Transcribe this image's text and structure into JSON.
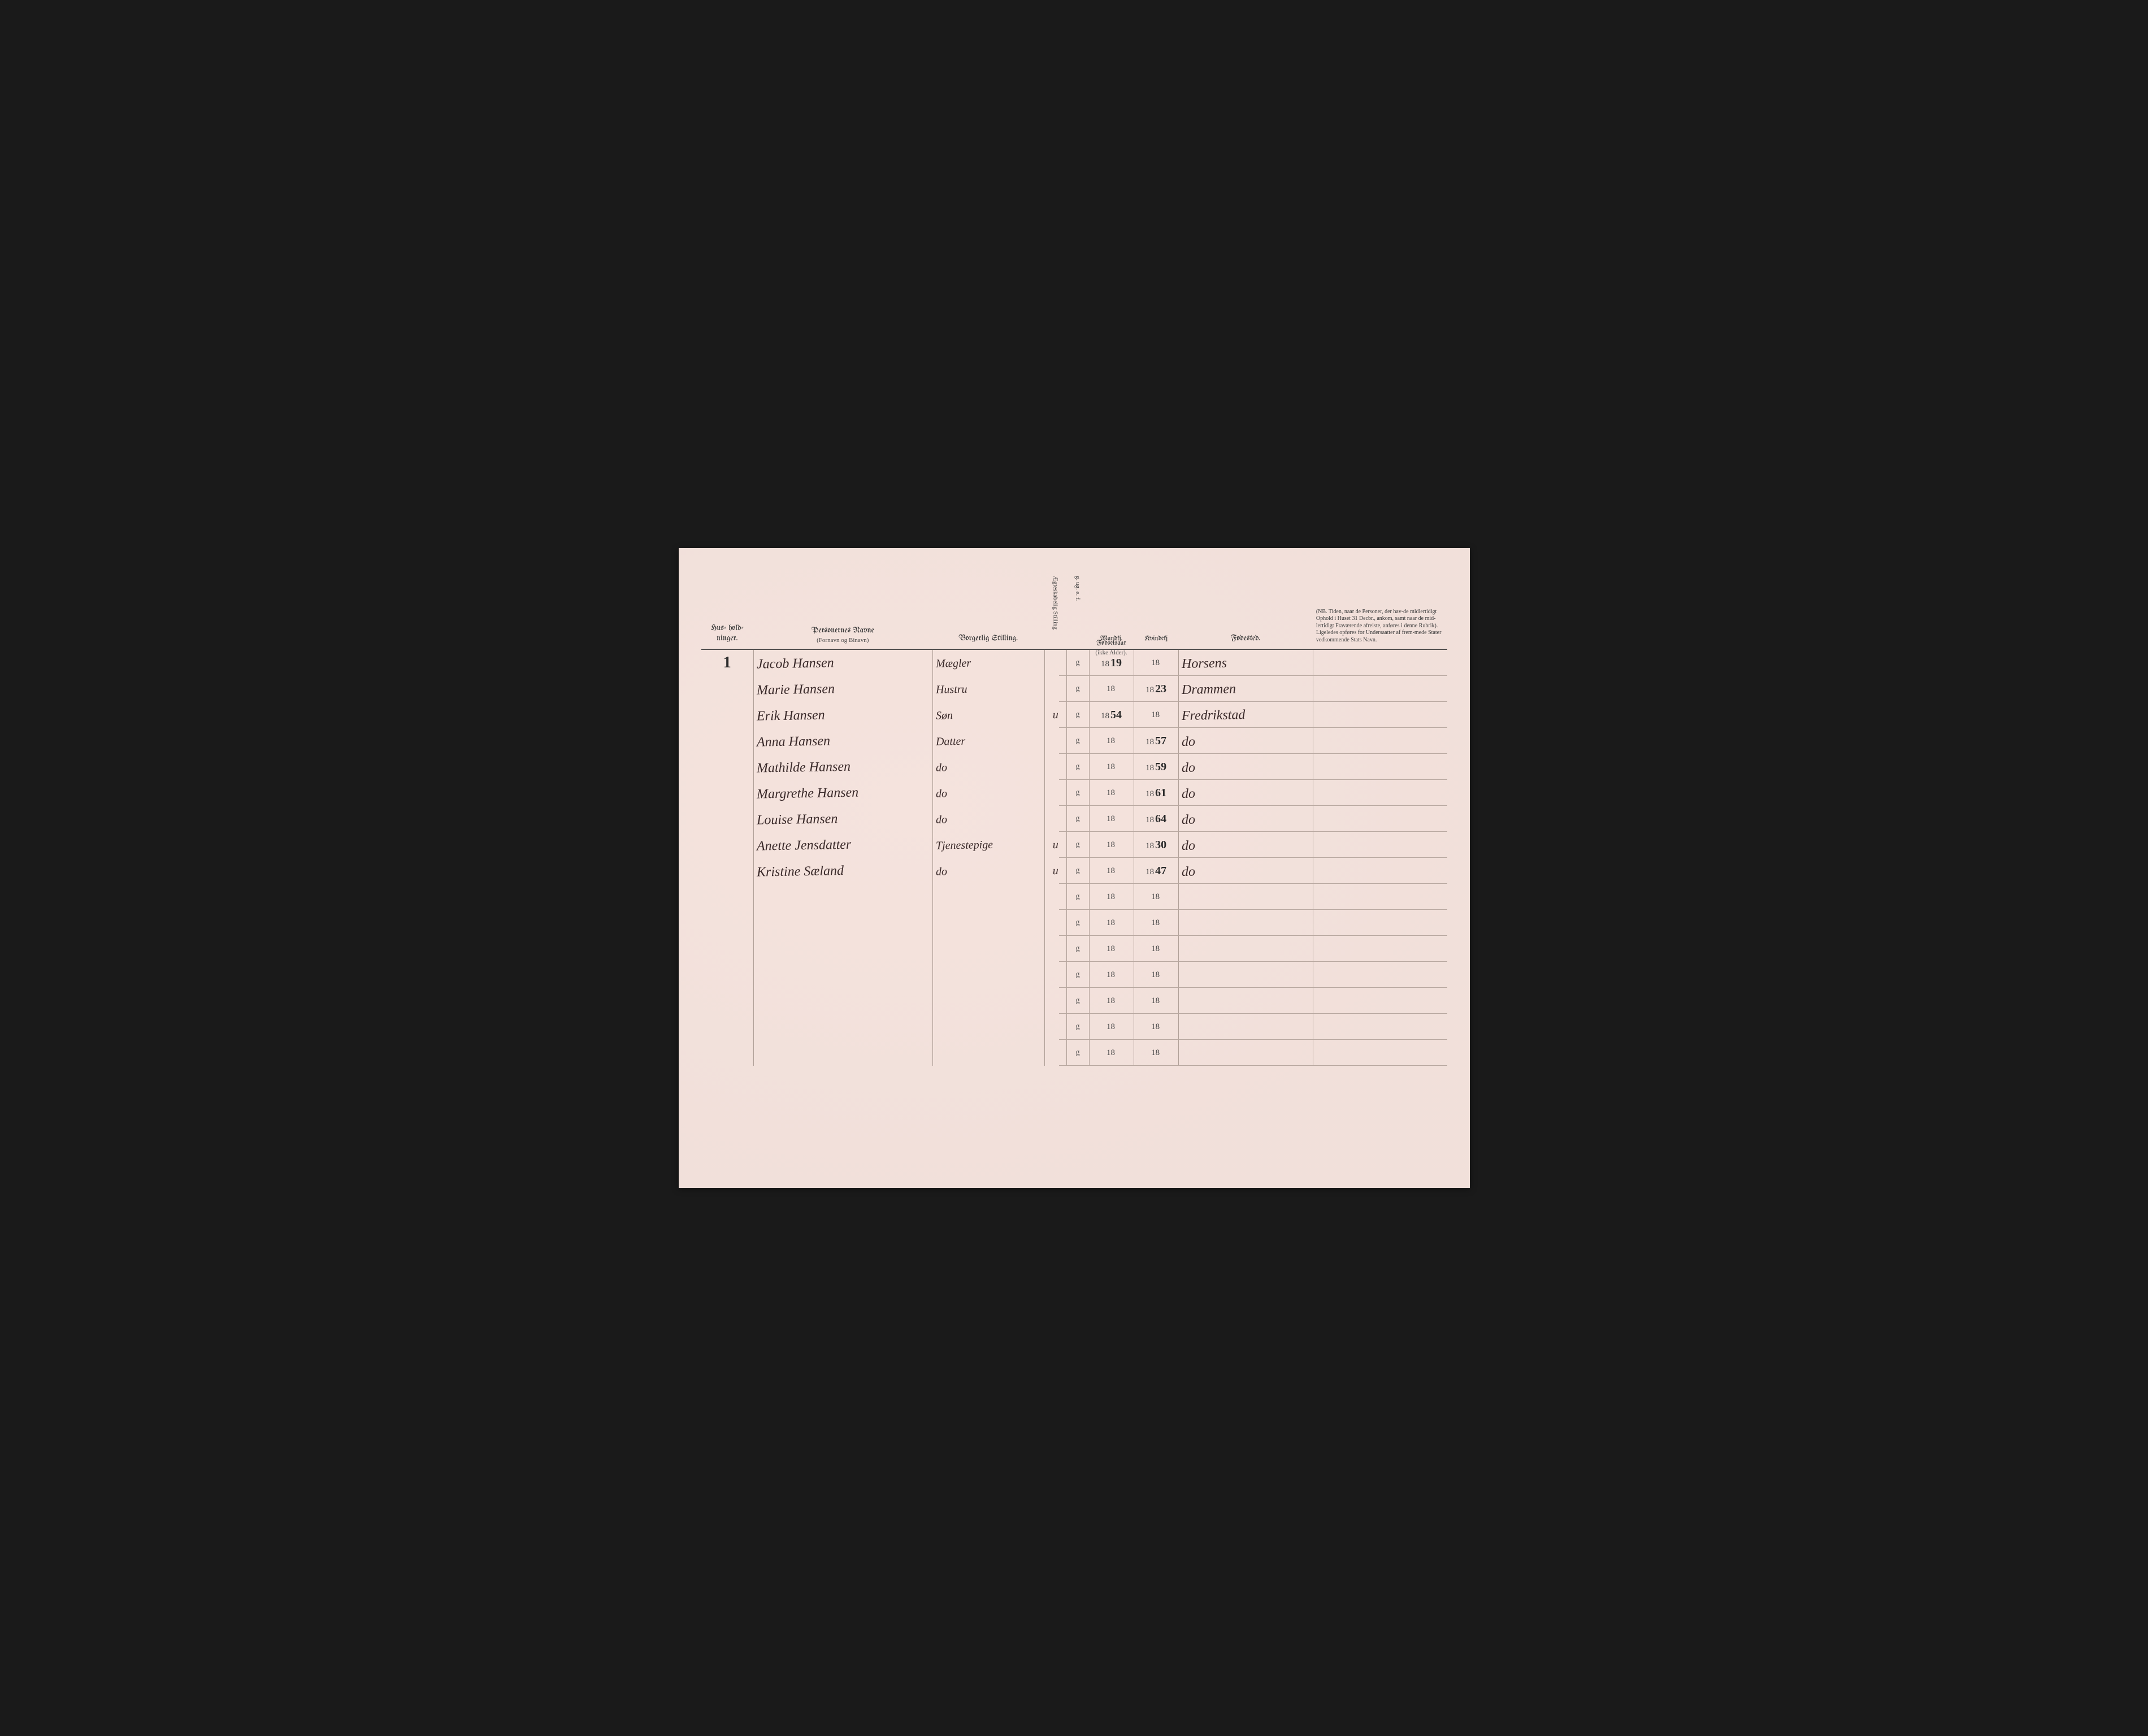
{
  "page": {
    "background_color": "#f5e6e0",
    "ink_color": "#3a2a2a",
    "printed_color": "#4a4a4a",
    "rule_color": "#b0a098",
    "border_color": "#3a3a3a"
  },
  "headers": {
    "husholdninger": "Hus-\nhold-\nninger.",
    "personernes_navne": "Personernes Navne",
    "fornavn_binavn": "(Fornavn og Binavn)",
    "borgerlig_stilling": "Borgerlig Stilling.",
    "aegteskabelig": "Ægteskabelig Stilling",
    "g_ug_e_f": "g. ug. e. f.",
    "fodselsaar": "Fødselsaar",
    "ikke_alder": "(ikke Alder).",
    "mandkj": "Mandkj.",
    "kvindekj": "Kvindekj",
    "fodested": "Fødested.",
    "nb_text": "(NB. Tiden, naar de Personer, der hav-de midlertidigt Ophold i Huset 31 Decbr., ankom, samt naar de mid-lertidigt Fraværende afreiste, anføres i denne Rubrik). Ligeledes opføres for Undersaatter af frem-mede Stater vedkommende Stats Navn."
  },
  "printed": {
    "g": "g",
    "prefix_18": "18"
  },
  "column_separators_pct": [
    7,
    31,
    46,
    49,
    52,
    58,
    64,
    82
  ],
  "rows": [
    {
      "household": "1",
      "name": "Jacob Hansen",
      "stilling": "Mægler",
      "status": "",
      "mandkj_suffix": "19",
      "kvindekj_suffix": "",
      "fodested": "Horsens"
    },
    {
      "household": "",
      "name": "Marie Hansen",
      "stilling": "Hustru",
      "status": "",
      "mandkj_suffix": "",
      "kvindekj_suffix": "23",
      "fodested": "Drammen"
    },
    {
      "household": "",
      "name": "Erik Hansen",
      "stilling": "Søn",
      "status": "u",
      "mandkj_suffix": "54",
      "kvindekj_suffix": "",
      "fodested": "Fredrikstad"
    },
    {
      "household": "",
      "name": "Anna Hansen",
      "stilling": "Datter",
      "status": "",
      "mandkj_suffix": "",
      "kvindekj_suffix": "57",
      "fodested": "do"
    },
    {
      "household": "",
      "name": "Mathilde Hansen",
      "stilling": "do",
      "status": "",
      "mandkj_suffix": "",
      "kvindekj_suffix": "59",
      "fodested": "do"
    },
    {
      "household": "",
      "name": "Margrethe Hansen",
      "stilling": "do",
      "status": "",
      "mandkj_suffix": "",
      "kvindekj_suffix": "61",
      "fodested": "do"
    },
    {
      "household": "",
      "name": "Louise Hansen",
      "stilling": "do",
      "status": "",
      "mandkj_suffix": "",
      "kvindekj_suffix": "64",
      "fodested": "do"
    },
    {
      "household": "",
      "name": "Anette Jensdatter",
      "stilling": "Tjenestepige",
      "status": "u",
      "mandkj_suffix": "",
      "kvindekj_suffix": "30",
      "fodested": "do"
    },
    {
      "household": "",
      "name": "Kristine Sæland",
      "stilling": "do",
      "status": "u",
      "mandkj_suffix": "",
      "kvindekj_suffix": "47",
      "fodested": "do"
    },
    {
      "household": "",
      "name": "",
      "stilling": "",
      "status": "",
      "mandkj_suffix": "",
      "kvindekj_suffix": "",
      "fodested": ""
    },
    {
      "household": "",
      "name": "",
      "stilling": "",
      "status": "",
      "mandkj_suffix": "",
      "kvindekj_suffix": "",
      "fodested": ""
    },
    {
      "household": "",
      "name": "",
      "stilling": "",
      "status": "",
      "mandkj_suffix": "",
      "kvindekj_suffix": "",
      "fodested": ""
    },
    {
      "household": "",
      "name": "",
      "stilling": "",
      "status": "",
      "mandkj_suffix": "",
      "kvindekj_suffix": "",
      "fodested": ""
    },
    {
      "household": "",
      "name": "",
      "stilling": "",
      "status": "",
      "mandkj_suffix": "",
      "kvindekj_suffix": "",
      "fodested": ""
    },
    {
      "household": "",
      "name": "",
      "stilling": "",
      "status": "",
      "mandkj_suffix": "",
      "kvindekj_suffix": "",
      "fodested": ""
    },
    {
      "household": "",
      "name": "",
      "stilling": "",
      "status": "",
      "mandkj_suffix": "",
      "kvindekj_suffix": "",
      "fodested": ""
    }
  ]
}
